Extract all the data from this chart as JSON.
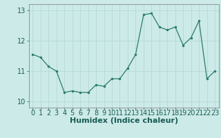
{
  "x": [
    0,
    1,
    2,
    3,
    4,
    5,
    6,
    7,
    8,
    9,
    10,
    11,
    12,
    13,
    14,
    15,
    16,
    17,
    18,
    19,
    20,
    21,
    22,
    23
  ],
  "y": [
    11.55,
    11.45,
    11.15,
    11.0,
    10.3,
    10.35,
    10.3,
    10.3,
    10.55,
    10.5,
    10.75,
    10.75,
    11.1,
    11.55,
    12.85,
    12.9,
    12.45,
    12.35,
    12.45,
    11.85,
    12.1,
    12.65,
    10.75,
    11.0
  ],
  "xlabel": "Humidex (Indice chaleur)",
  "ylim": [
    9.8,
    13.2
  ],
  "xlim": [
    -0.5,
    23.5
  ],
  "yticks": [
    10,
    11,
    12,
    13
  ],
  "xticks": [
    0,
    1,
    2,
    3,
    4,
    5,
    6,
    7,
    8,
    9,
    10,
    11,
    12,
    13,
    14,
    15,
    16,
    17,
    18,
    19,
    20,
    21,
    22,
    23
  ],
  "line_color": "#2a7a6e",
  "marker_color": "#2a7a6e",
  "bg_color": "#cceae8",
  "grid_color": "#b8dbd9",
  "axis_color": "#888888",
  "tick_font_size": 7,
  "xlabel_font_size": 8
}
